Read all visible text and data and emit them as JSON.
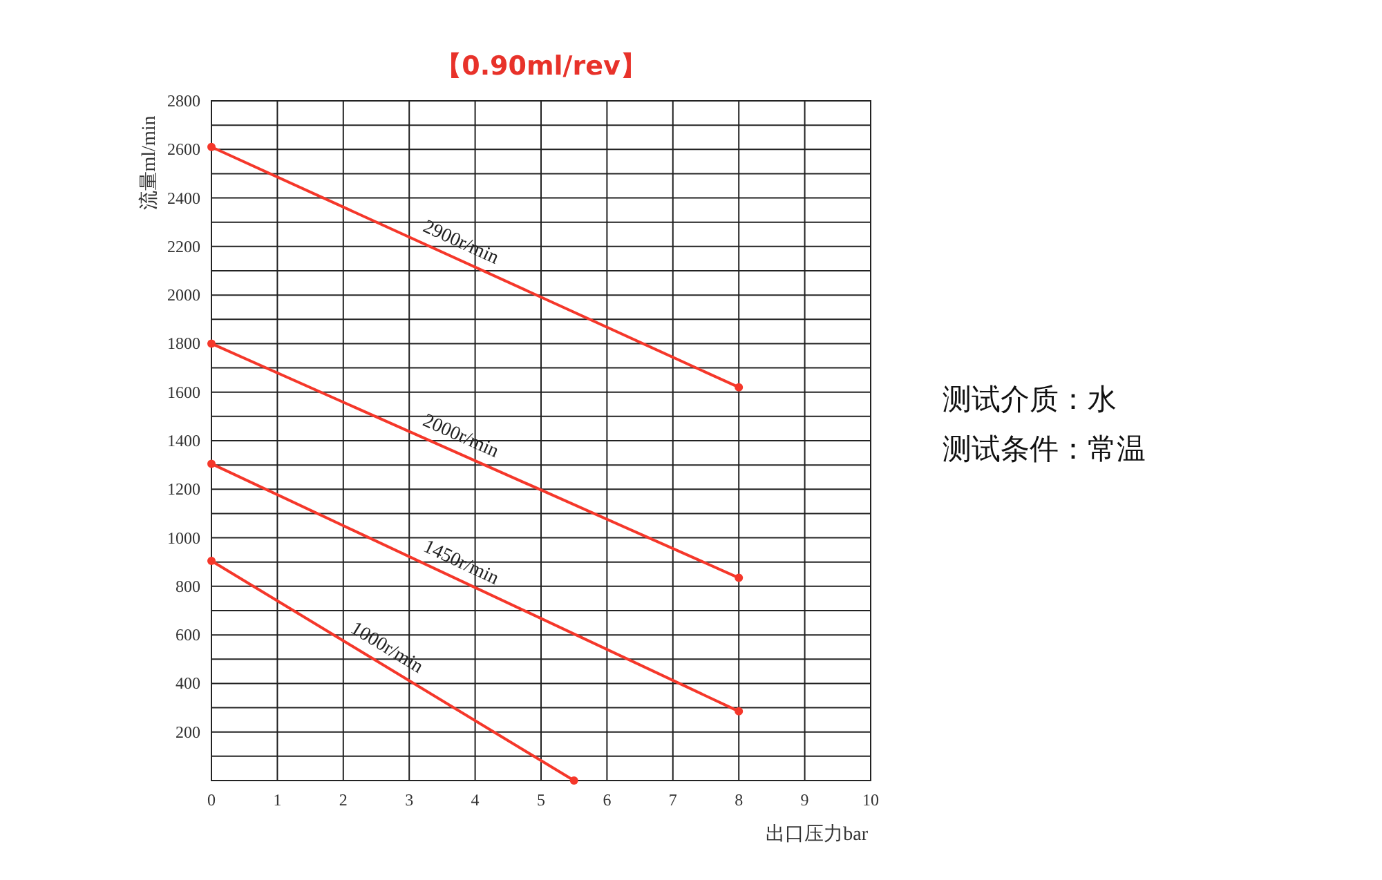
{
  "chart_data": {
    "type": "line",
    "title": "【0.90ml/rev】",
    "xlabel": "出口压力bar",
    "ylabel": "流量ml/min",
    "xlim": [
      0,
      10
    ],
    "xticks": [
      0,
      1,
      2,
      3,
      4,
      5,
      6,
      7,
      8,
      9,
      10
    ],
    "ylim": [
      0,
      2800
    ],
    "yticks": [
      {
        "value": 0,
        "label": null
      },
      {
        "value": 100,
        "label": null
      },
      200,
      {
        "value": 300,
        "label": null
      },
      400,
      {
        "value": 500,
        "label": null
      },
      600,
      {
        "value": 700,
        "label": null
      },
      800,
      {
        "value": 900,
        "label": null
      },
      1000,
      {
        "value": 1100,
        "label": null
      },
      1200,
      {
        "value": 1300,
        "label": null
      },
      1400,
      {
        "value": 1500,
        "label": null
      },
      1600,
      {
        "value": 1700,
        "label": null
      },
      1800,
      {
        "value": 1900,
        "label": null
      },
      2000,
      {
        "value": 2100,
        "label": null
      },
      2200,
      {
        "value": 2300,
        "label": null
      },
      2400,
      {
        "value": 2500,
        "label": null
      },
      2600,
      {
        "value": 2700,
        "label": null
      },
      2800
    ],
    "grid": true,
    "marker": "circle",
    "series": [
      {
        "name": "2900r/min",
        "color": "#f5372a",
        "x": [
          0,
          8
        ],
        "values": [
          2610,
          1620
        ]
      },
      {
        "name": "2000r/min",
        "color": "#f5372a",
        "x": [
          0,
          8
        ],
        "values": [
          1800,
          835
        ]
      },
      {
        "name": "1450r/min",
        "color": "#f5372a",
        "x": [
          0,
          8
        ],
        "values": [
          1305,
          285
        ]
      },
      {
        "name": "1000r/min",
        "color": "#f5372a",
        "x": [
          0,
          5.5
        ],
        "values": [
          905,
          0
        ]
      }
    ],
    "annotations": [
      "测试介质：水",
      "测试条件：常温"
    ]
  }
}
